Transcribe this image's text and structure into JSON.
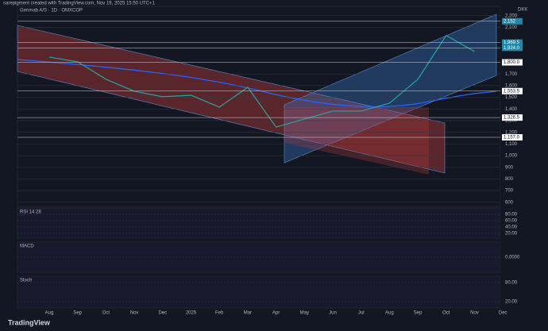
{
  "header": "sarepigment created with TradingView.com, Nov 19, 2025 15:50 UTC+1",
  "footer": "TradingView",
  "chart_data": [
    {
      "type": "line",
      "title": "Genmab A/S · 1D · OMXCOP",
      "unit": "DKK",
      "color": "#26a69a",
      "categories": [
        "Aug",
        "Sep",
        "Oct",
        "Nov",
        "Dec",
        "2025",
        "Feb",
        "Mar",
        "Apr",
        "May",
        "Jun",
        "Jul",
        "Aug",
        "Sep",
        "Oct",
        "Nov",
        "Dec"
      ],
      "values": [
        1845,
        1805,
        1655,
        1552,
        1505,
        1518,
        1416,
        1586,
        1245,
        1314,
        1382,
        1382,
        1450,
        1655,
        2030,
        1893,
        null
      ],
      "ylim": [
        565,
        2280
      ],
      "yticks": [
        600,
        700,
        800,
        900,
        {
          "value": 1000,
          "label": "1,000"
        },
        {
          "value": 1100,
          "label": "1,100"
        },
        {
          "value": 1200,
          "label": "1,200"
        },
        {
          "value": 1300,
          "label": "1,300"
        },
        {
          "value": 1400,
          "label": "1,400"
        },
        {
          "value": 1500,
          "label": "1,500"
        },
        {
          "value": 1600,
          "label": "1,600"
        },
        {
          "value": 1700,
          "label": "1,700"
        },
        {
          "value": 2100,
          "label": "2,100"
        },
        {
          "value": 2200,
          "label": "2,200"
        }
      ],
      "price_tags": [
        {
          "value": 2152,
          "label": "2,152"
        },
        {
          "value": 1969.5,
          "label": "1,969.5"
        },
        {
          "value": 1924,
          "label": "1,924.0"
        },
        {
          "value": 1800,
          "label": "1,800.0"
        },
        {
          "value": 1553.5,
          "label": "1,553.5"
        },
        {
          "value": 1326.5,
          "label": "1,326.5"
        },
        {
          "value": 1157,
          "label": "1,157.0"
        }
      ],
      "grid": true
    },
    {
      "type": "line",
      "title": "RSI 14 28",
      "ylim": [
        5,
        100
      ],
      "yticks": [
        {
          "value": 80,
          "label": "80.00"
        },
        {
          "value": 60,
          "label": "60.00"
        },
        {
          "value": 40,
          "label": "40.00"
        },
        {
          "value": 20,
          "label": "20.00"
        }
      ],
      "grid": true
    },
    {
      "type": "line",
      "title": "MACD",
      "ylim": [
        -1,
        1
      ],
      "yticks": [
        {
          "value": 0,
          "label": "0.0000"
        }
      ],
      "grid": true
    },
    {
      "type": "line",
      "title": "Stoch",
      "ylim": [
        0,
        100
      ],
      "yticks": [
        {
          "value": 80,
          "label": "80.00"
        },
        {
          "value": 20,
          "label": "20.00"
        }
      ],
      "grid": true
    }
  ]
}
